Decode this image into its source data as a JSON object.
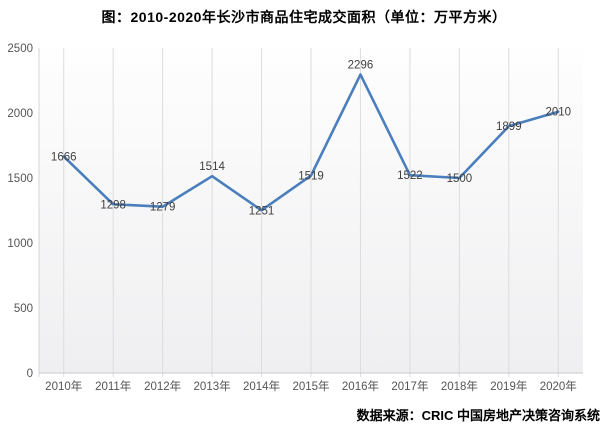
{
  "title": "图：2010-2020年长沙市商品住宅成交面积（单位：万平方米）",
  "source": "数据来源：CRIC 中国房地产决策咨询系统",
  "chart_data": {
    "type": "line",
    "title": "图：2010-2020年长沙市商品住宅成交面积（单位：万平方米）",
    "categories": [
      "2010年",
      "2011年",
      "2012年",
      "2013年",
      "2014年",
      "2015年",
      "2016年",
      "2017年",
      "2018年",
      "2019年",
      "2020年"
    ],
    "series": [
      {
        "name": "商品住宅成交面积(万平方米)",
        "values": [
          1666,
          1298,
          1279,
          1514,
          1251,
          1519,
          2296,
          1522,
          1500,
          1899,
          2010
        ]
      }
    ],
    "data_labels": [
      1666,
      1298,
      1279,
      1514,
      1251,
      1519,
      2296,
      1522,
      1500,
      1899,
      2010
    ],
    "xlabel": "",
    "ylabel": "",
    "ylim": [
      0,
      2500
    ],
    "yticks": [
      0,
      500,
      1000,
      1500,
      2000,
      2500
    ],
    "grid": "vertical-only",
    "legend_position": "none",
    "colors": {
      "line": "#4a7ebc",
      "gridline": "#dcdcdf",
      "plot_edge": "#d4d4d7",
      "axis_line": "#c8c8c8",
      "tick_label": "#555555",
      "data_label": "#404040",
      "plot_bg_top": "#fefefe",
      "plot_bg_bottom": "#efeff1"
    }
  }
}
